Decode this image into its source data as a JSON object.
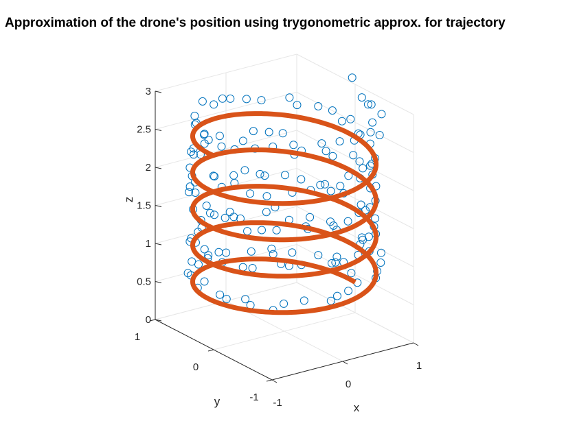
{
  "chart_data": {
    "type": "scatter",
    "title": "Approximation of the drone's position using trygonometric approx. for trajectory",
    "xlabel": "x",
    "ylabel": "y",
    "zlabel": "z",
    "xlim": [
      -1,
      1
    ],
    "ylim": [
      -1,
      1
    ],
    "zlim": [
      0,
      3
    ],
    "x_ticks": [
      "-1",
      "0",
      "1"
    ],
    "y_ticks": [
      "-1",
      "0",
      "1"
    ],
    "z_ticks": [
      "0",
      "0.5",
      "1",
      "1.5",
      "2",
      "2.5",
      "3"
    ],
    "grid": true,
    "series": [
      {
        "mode": "markers",
        "marker": "circle",
        "color": "#0072BD",
        "description": "noisy position samples along a helix",
        "helix": {
          "radius": 1,
          "turns": 5,
          "z_start": 0.5,
          "z_end": 3
        },
        "point_count": 170
      },
      {
        "mode": "line",
        "color": "#D95319",
        "description": "trigonometric approximation of trajectory",
        "helix": {
          "radius": 1,
          "turns": 4.5,
          "z_start": 0.4,
          "z_end": 2.55
        }
      }
    ]
  }
}
